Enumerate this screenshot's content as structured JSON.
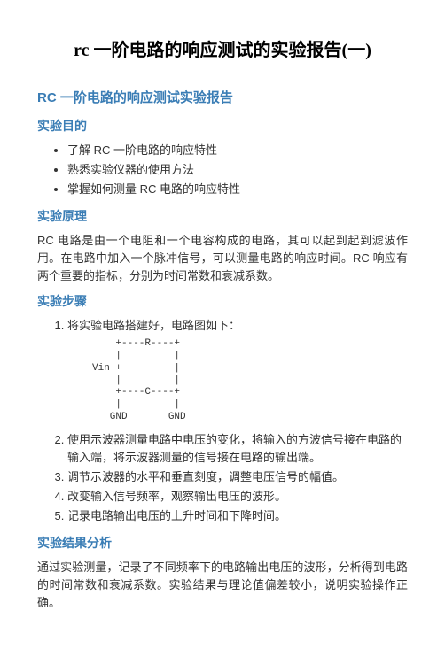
{
  "title": "rc 一阶电路的响应测试的实验报告(一)",
  "h2_1": "RC 一阶电路的响应测试实验报告",
  "h3_purpose": "实验目的",
  "purpose_items": [
    "了解 RC 一阶电路的响应特性",
    "熟悉实验仪器的使用方法",
    "掌握如何测量 RC 电路的响应特性"
  ],
  "h3_principle": "实验原理",
  "principle_text": "RC 电路是由一个电阻和一个电容构成的电路，其可以起到起到滤波作用。在电路中加入一个脉冲信号，可以测量电路的响应时间。RC 响应有两个重要的指标，分别为时间常数和衰减系数。",
  "h3_steps": "实验步骤",
  "step1": "将实验电路搭建好，电路图如下：",
  "circuit": "    +----R----+\n    |         |\nVin +         |\n    |         |\n    +----C----+\n    |         |\n   GND       GND",
  "step2": "使用示波器测量电路中电压的变化，将输入的方波信号接在电路的输入端，将示波器测量的信号接在电路的输出端。",
  "step3": "调节示波器的水平和垂直刻度，调整电压信号的幅值。",
  "step4": "改变输入信号频率，观察输出电压的波形。",
  "step5": "记录电路输出电压的上升时间和下降时间。",
  "h3_results": "实验结果分析",
  "results_text": "通过实验测量，记录了不同频率下的电路输出电压的波形，分析得到电路的时间常数和衰减系数。实验结果与理论值偏差较小，说明实验操作正确。"
}
